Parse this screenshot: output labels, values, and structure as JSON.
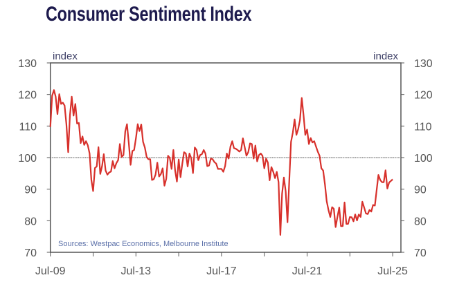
{
  "chart_data": {
    "type": "line",
    "title": "Consumer Sentiment Index",
    "ylabel_left": "index",
    "ylabel_right": "index",
    "source": "Sources: Westpac Economics, Melbourne Institute",
    "ylim": [
      70,
      130
    ],
    "yticks": [
      70,
      80,
      90,
      100,
      110,
      120,
      130
    ],
    "reference_line": 100,
    "x_start": "Jul-09",
    "x_frequency": "monthly",
    "x_tick_labels": [
      "Jul-09",
      "Jul-13",
      "Jul-17",
      "Jul-21",
      "Jul-25"
    ],
    "x_tick_label_months": [
      0,
      48,
      96,
      144,
      192
    ],
    "x_minor_tick_months": [
      0,
      24,
      48,
      72,
      96,
      120,
      144,
      168,
      192
    ],
    "grid": false,
    "colors": {
      "line": "#d7302b",
      "title": "#1d1a4d",
      "axis": "#555555",
      "source": "#5a6fa8",
      "reference": "#888888"
    },
    "series": [
      {
        "values": [
          109.7,
          119.6,
          121.4,
          119.3,
          113.8,
          120.1,
          117,
          117.4,
          116.5,
          110.5,
          101.7,
          113.4,
          119.3,
          113.3,
          117,
          110.8,
          111,
          104.6,
          106.7,
          104,
          105.2,
          103.9,
          101.3,
          93,
          89.4,
          96.7,
          97.2,
          103.3,
          94.8,
          97.3,
          101.1,
          95.9,
          94.6,
          95.3,
          95.6,
          98.9,
          96.6,
          98.2,
          99.2,
          104.3,
          100.2,
          100.8,
          108.3,
          110.6,
          104.6,
          97.7,
          102.1,
          102.4,
          106.1,
          110.6,
          108.4,
          110.5,
          105,
          103.2,
          100.2,
          99.5,
          99.5,
          92.9,
          93.2,
          94.6,
          98.4,
          94,
          94.8,
          96.6,
          91.1,
          93.3,
          100.6,
          99.9,
          96.4,
          102.4,
          95.9,
          92.4,
          99.4,
          93.8,
          98.1,
          101.7,
          101.3,
          97.2,
          101.3,
          99.9,
          95.1,
          103.2,
          102.4,
          99.2,
          100.8,
          101.1,
          102.4,
          101.3,
          97.3,
          97.5,
          99.7,
          99.5,
          98.6,
          98.1,
          96.4,
          96.4,
          96.4,
          95.5,
          97.3,
          101.3,
          99.7,
          103.5,
          105.2,
          103,
          102.8,
          102.4,
          101.9,
          102.4,
          106.1,
          103.3,
          100.6,
          101.7,
          104.5,
          104.3,
          99.7,
          103.8,
          98.8,
          100.8,
          101.3,
          100.6,
          96.6,
          99.7,
          98.4,
          92.8,
          97,
          95.5,
          93.5,
          95.5,
          92.2,
          75.5,
          88.6,
          93.7,
          89.3,
          79.5,
          92.9,
          105,
          107.9,
          112.1,
          107.2,
          109,
          111.9,
          118.9,
          113.4,
          107.2,
          108.9,
          104.3,
          106.2,
          104.8,
          105.2,
          103.5,
          101.9,
          100.6,
          96.6,
          95.9,
          91.5,
          86.2,
          83.4,
          81.2,
          84.3,
          83.8,
          78,
          81.2,
          84.2,
          78.3,
          78.3,
          85.8,
          79,
          79,
          81.2,
          81.1,
          79.8,
          82,
          80.1,
          82,
          81.2,
          86,
          84.2,
          82.3,
          82.1,
          83.4,
          82.9,
          85,
          84.8,
          89.6,
          94.5,
          92.9,
          92.2,
          92.2,
          96,
          90.2,
          92.1,
          92.6,
          93.1
        ]
      }
    ]
  }
}
